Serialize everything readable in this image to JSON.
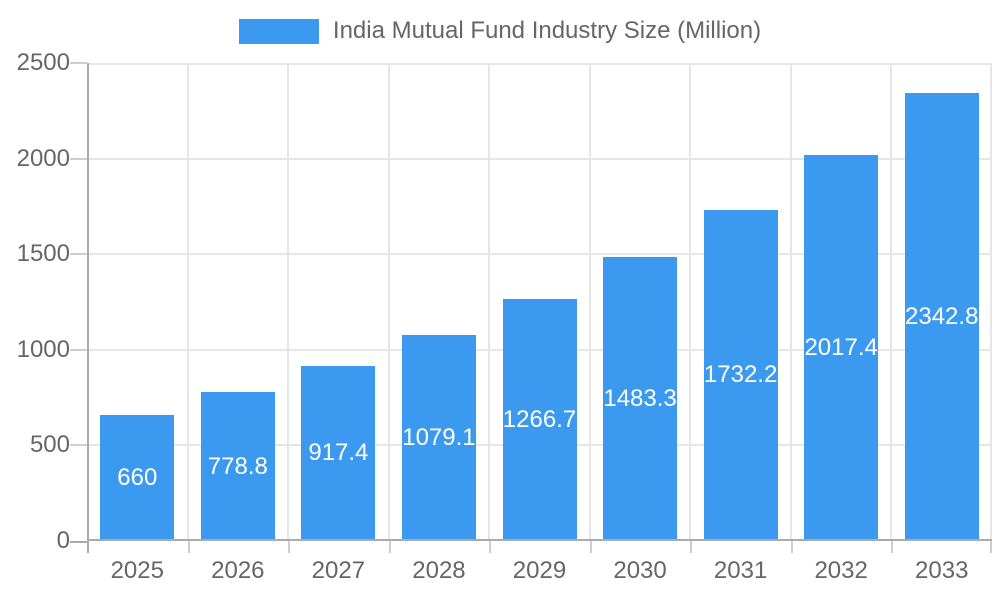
{
  "legend": {
    "label": "India Mutual Fund Industry Size (Million)"
  },
  "colors": {
    "bar": "#3b9aef",
    "legend_text": "#666666",
    "axis_text": "#666666",
    "grid": "#e6e6e6",
    "axis_line": "#ababab",
    "tick": "#cfcfcf",
    "value_label": "#ffffff"
  },
  "chart_data": {
    "type": "bar",
    "title": "India Mutual Fund Industry Size (Million)",
    "categories": [
      "2025",
      "2026",
      "2027",
      "2028",
      "2029",
      "2030",
      "2031",
      "2032",
      "2033"
    ],
    "values": [
      660,
      778.8,
      917.4,
      1079.1,
      1266.7,
      1483.3,
      1732.2,
      2017.4,
      2342.8
    ],
    "value_labels": [
      "660",
      "778.8",
      "917.4",
      "1079.1",
      "1266.7",
      "1483.3",
      "1732.2",
      "2017.4",
      "2342.8"
    ],
    "xlabel": "",
    "ylabel": "",
    "ylim": [
      0,
      2500
    ],
    "yticks": [
      0,
      500,
      1000,
      1500,
      2000,
      2500
    ],
    "grid": true,
    "legend_position": "top",
    "value_labels_position": "center-of-bar"
  }
}
